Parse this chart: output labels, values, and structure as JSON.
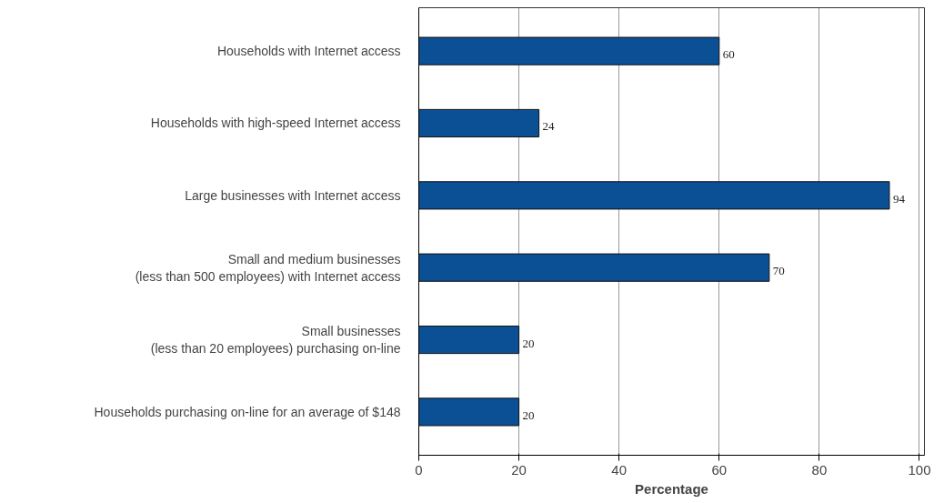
{
  "chart_data": {
    "type": "bar",
    "orientation": "horizontal",
    "xlabel": "Percentage",
    "categories": [
      "Households with Internet access",
      "Households with high-speed Internet access",
      "Large businesses with Internet access",
      "Small and medium businesses\n(less than 500 employees) with Internet access",
      "Small businesses\n(less than 20 employees) purchasing on-line",
      "Households purchasing on-line for an average of $148"
    ],
    "values": [
      60,
      24,
      94,
      70,
      20,
      20
    ],
    "color": "#0b4f95",
    "xlim": [
      0,
      101
    ],
    "xticks": [
      0,
      20,
      40,
      60,
      80,
      100
    ],
    "grid": "x",
    "data_labels": true
  }
}
